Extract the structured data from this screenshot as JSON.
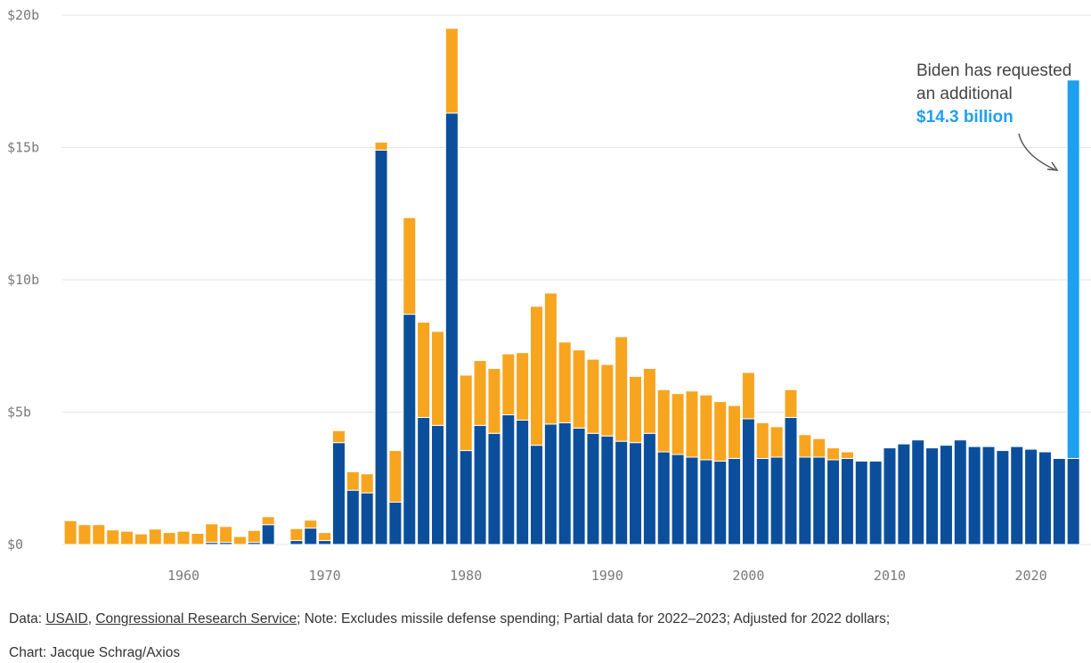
{
  "colors": {
    "blue": "#0b4f9c",
    "orange": "#f7a51f",
    "request": "#1ea0ef",
    "grid": "#e4e4e4"
  },
  "chart_data": {
    "type": "bar",
    "stacked": true,
    "title": "",
    "xlabel": "",
    "ylabel": "",
    "ylim": [
      0,
      20
    ],
    "y_ticks": [
      0,
      5,
      10,
      15,
      20
    ],
    "y_tick_labels": [
      "$0",
      "$5b",
      "$10b",
      "$15b",
      "$20b"
    ],
    "x_ticks": [
      1960,
      1970,
      1980,
      1990,
      2000,
      2010,
      2020
    ],
    "x_tick_labels": [
      "1960",
      "1970",
      "1980",
      "1990",
      "2000",
      "2010",
      "2020"
    ],
    "grid": true,
    "unit": "billions of dollars",
    "categories": [
      1952,
      1953,
      1954,
      1955,
      1956,
      1957,
      1958,
      1959,
      1960,
      1961,
      1962,
      1963,
      1964,
      1965,
      1966,
      1967,
      1968,
      1969,
      1970,
      1971,
      1972,
      1973,
      1974,
      1975,
      1976,
      1977,
      1978,
      1979,
      1980,
      1981,
      1982,
      1983,
      1984,
      1985,
      1986,
      1987,
      1988,
      1989,
      1990,
      1991,
      1992,
      1993,
      1994,
      1995,
      1996,
      1997,
      1998,
      1999,
      2000,
      2001,
      2002,
      2003,
      2004,
      2005,
      2006,
      2007,
      2008,
      2009,
      2010,
      2011,
      2012,
      2013,
      2014,
      2015,
      2016,
      2017,
      2018,
      2019,
      2020,
      2021,
      2022,
      2023
    ],
    "series": [
      {
        "color": "#0b4f9c",
        "values": [
          0,
          0,
          0,
          0,
          0,
          0,
          0,
          0,
          0,
          0,
          0.08,
          0.08,
          0,
          0.08,
          0.75,
          0,
          0.15,
          0.62,
          0.15,
          3.85,
          2.05,
          1.95,
          14.9,
          1.6,
          8.7,
          4.8,
          4.5,
          16.3,
          3.55,
          4.5,
          4.2,
          4.9,
          4.7,
          3.75,
          4.55,
          4.6,
          4.4,
          4.2,
          4.1,
          3.9,
          3.85,
          4.2,
          3.5,
          3.4,
          3.3,
          3.2,
          3.15,
          3.25,
          4.75,
          3.25,
          3.3,
          4.8,
          3.3,
          3.3,
          3.2,
          3.25,
          3.15,
          3.15,
          3.65,
          3.8,
          3.95,
          3.65,
          3.75,
          3.95,
          3.7,
          3.7,
          3.55,
          3.7,
          3.6,
          3.5,
          3.25,
          3.25
        ]
      },
      {
        "color": "#f7a51f",
        "values": [
          0.9,
          0.75,
          0.75,
          0.55,
          0.5,
          0.4,
          0.58,
          0.45,
          0.5,
          0.42,
          0.7,
          0.6,
          0.3,
          0.45,
          0.3,
          0,
          0.45,
          0.3,
          0.3,
          0.45,
          0.7,
          0.72,
          0.3,
          1.95,
          3.65,
          3.6,
          3.55,
          3.2,
          2.85,
          2.45,
          2.45,
          2.3,
          2.55,
          5.25,
          4.95,
          3.05,
          2.95,
          2.8,
          2.7,
          3.95,
          2.5,
          2.45,
          2.35,
          2.3,
          2.5,
          2.45,
          2.25,
          2.0,
          1.75,
          1.35,
          1.15,
          1.05,
          0.85,
          0.7,
          0.45,
          0.25,
          0,
          0,
          0,
          0,
          0,
          0,
          0,
          0,
          0,
          0,
          0,
          0,
          0,
          0,
          0,
          0
        ]
      }
    ],
    "request_bar": {
      "category": 2023,
      "base": 3.25,
      "value": 14.3,
      "total": 17.55,
      "color": "#1ea0ef"
    },
    "annotation": {
      "line1": "Biden has requested",
      "line2": "an additional",
      "amount": "$14.3 billion"
    }
  },
  "footer": {
    "prefix": "Data: ",
    "source1": "USAID",
    "sep": ", ",
    "source2": "Congressional Research Service",
    "note": "; Note: Excludes missile defense spending; Partial data for 2022–2023; Adjusted for 2022 dollars;",
    "credit": "Chart: Jacque Schrag/Axios"
  }
}
